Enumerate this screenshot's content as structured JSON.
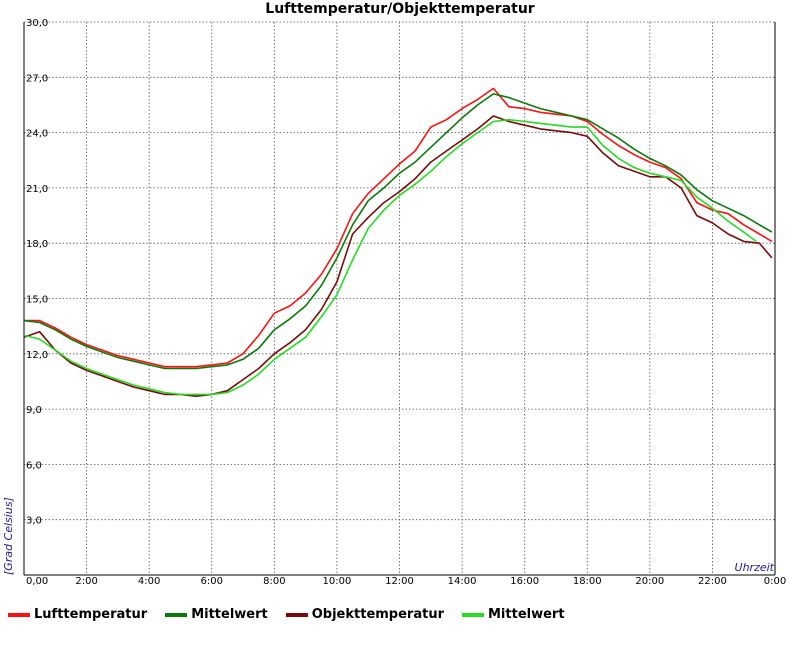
{
  "chart_data": {
    "type": "line",
    "title": "Lufttemperatur/Objekttemperatur",
    "xlabel": "Uhrzeit",
    "ylabel": "[Grad Celsius]",
    "xlim": [
      0,
      24
    ],
    "ylim": [
      0,
      30
    ],
    "x_ticks": [
      "0,00",
      "2:00",
      "4:00",
      "6:00",
      "8:00",
      "10:00",
      "12:00",
      "14:00",
      "16:00",
      "18:00",
      "20:00",
      "22:00",
      "0:00"
    ],
    "y_ticks": [
      "3,0",
      "6,0",
      "9,0",
      "12,0",
      "15,0",
      "18,0",
      "21,0",
      "24,0",
      "27,0",
      "30,0"
    ],
    "grid": true,
    "legend_position": "bottom",
    "series": [
      {
        "name": "Lufttemperatur",
        "color": "#ff1010",
        "x": [
          0,
          0.5,
          1,
          1.5,
          2,
          2.5,
          3,
          3.5,
          4,
          4.5,
          5,
          5.5,
          6,
          6.5,
          7,
          7.5,
          8,
          8.5,
          9,
          9.5,
          10,
          10.5,
          11,
          11.5,
          12,
          12.5,
          13,
          13.5,
          14,
          14.5,
          15,
          15.5,
          16,
          16.5,
          17,
          17.5,
          18,
          18.5,
          19,
          19.5,
          20,
          20.5,
          21,
          21.5,
          22,
          22.5,
          23,
          23.5,
          23.9
        ],
        "y": [
          13.8,
          13.8,
          13.4,
          12.9,
          12.5,
          12.2,
          11.9,
          11.7,
          11.5,
          11.3,
          11.3,
          11.3,
          11.4,
          11.5,
          12.0,
          13.0,
          14.2,
          14.6,
          15.3,
          16.3,
          17.7,
          19.6,
          20.7,
          21.5,
          22.3,
          23.0,
          24.3,
          24.7,
          25.3,
          25.8,
          26.4,
          25.4,
          25.3,
          25.1,
          25.0,
          24.9,
          24.6,
          23.9,
          23.3,
          22.8,
          22.4,
          22.1,
          21.5,
          20.2,
          19.8,
          19.6,
          19.0,
          18.5,
          18.1
        ]
      },
      {
        "name": "Mittelwert",
        "color": "#0a7a0a",
        "x": [
          0,
          0.5,
          1,
          1.5,
          2,
          2.5,
          3,
          3.5,
          4,
          4.5,
          5,
          5.5,
          6,
          6.5,
          7,
          7.5,
          8,
          8.5,
          9,
          9.5,
          10,
          10.5,
          11,
          11.5,
          12,
          12.5,
          13,
          13.5,
          14,
          14.5,
          15,
          15.5,
          16,
          16.5,
          17,
          17.5,
          18,
          18.5,
          19,
          19.5,
          20,
          20.5,
          21,
          21.5,
          22,
          22.5,
          23,
          23.5,
          23.9
        ],
        "y": [
          13.8,
          13.7,
          13.3,
          12.8,
          12.4,
          12.1,
          11.8,
          11.6,
          11.4,
          11.2,
          11.2,
          11.2,
          11.3,
          11.4,
          11.7,
          12.3,
          13.3,
          13.9,
          14.6,
          15.7,
          17.2,
          19.0,
          20.3,
          21.0,
          21.8,
          22.4,
          23.2,
          24.0,
          24.8,
          25.5,
          26.1,
          25.9,
          25.6,
          25.3,
          25.1,
          24.9,
          24.7,
          24.2,
          23.7,
          23.1,
          22.6,
          22.2,
          21.7,
          20.9,
          20.3,
          19.9,
          19.5,
          19.0,
          18.6
        ]
      },
      {
        "name": "Objekttemperatur",
        "color": "#7a0a0a",
        "x": [
          0,
          0.5,
          1,
          1.5,
          2,
          2.5,
          3,
          3.5,
          4,
          4.5,
          5,
          5.5,
          6,
          6.5,
          7,
          7.5,
          8,
          8.5,
          9,
          9.5,
          10,
          10.5,
          11,
          11.5,
          12,
          12.5,
          13,
          13.5,
          14,
          14.5,
          15,
          15.5,
          16,
          16.5,
          17,
          17.5,
          18,
          18.5,
          19,
          19.5,
          20,
          20.5,
          21,
          21.5,
          22,
          22.5,
          23,
          23.5,
          23.9
        ],
        "y": [
          12.9,
          13.2,
          12.2,
          11.5,
          11.1,
          10.8,
          10.5,
          10.2,
          10.0,
          9.8,
          9.8,
          9.7,
          9.8,
          10.0,
          10.6,
          11.2,
          12.0,
          12.6,
          13.3,
          14.4,
          15.9,
          18.5,
          19.4,
          20.2,
          20.8,
          21.5,
          22.4,
          23.0,
          23.6,
          24.2,
          24.9,
          24.6,
          24.4,
          24.2,
          24.1,
          24.0,
          23.8,
          22.9,
          22.2,
          21.9,
          21.6,
          21.6,
          21.0,
          19.5,
          19.1,
          18.5,
          18.1,
          18.0,
          17.2
        ]
      },
      {
        "name": "Mittelwert",
        "color": "#22dd22",
        "x": [
          0,
          0.5,
          1,
          1.5,
          2,
          2.5,
          3,
          3.5,
          4,
          4.5,
          5,
          5.5,
          6,
          6.5,
          7,
          7.5,
          8,
          8.5,
          9,
          9.5,
          10,
          10.5,
          11,
          11.5,
          12,
          12.5,
          13,
          13.5,
          14,
          14.5,
          15,
          15.5,
          16,
          16.5,
          17,
          17.5,
          18,
          18.5,
          19,
          19.5,
          20,
          20.5,
          21,
          21.5,
          22,
          22.5,
          23,
          23.4
        ],
        "y": [
          13.0,
          12.8,
          12.2,
          11.6,
          11.2,
          10.9,
          10.6,
          10.3,
          10.1,
          9.9,
          9.8,
          9.8,
          9.8,
          9.9,
          10.3,
          10.9,
          11.7,
          12.3,
          12.9,
          14.0,
          15.2,
          17.1,
          18.8,
          19.8,
          20.6,
          21.2,
          21.9,
          22.7,
          23.4,
          24.0,
          24.6,
          24.7,
          24.6,
          24.5,
          24.4,
          24.3,
          24.3,
          23.3,
          22.6,
          22.1,
          21.8,
          21.6,
          21.4,
          20.5,
          19.9,
          19.2,
          18.6,
          18.1
        ]
      }
    ]
  }
}
